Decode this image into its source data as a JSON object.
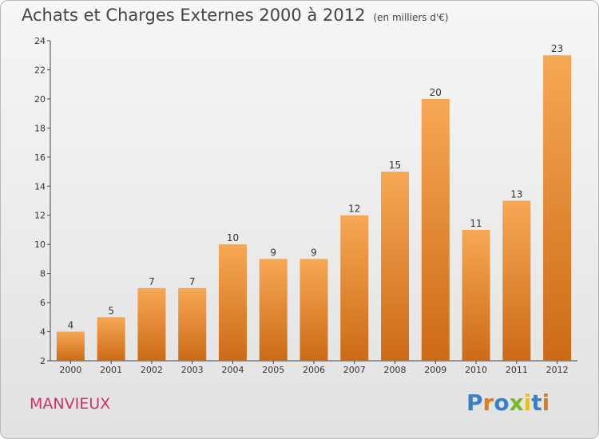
{
  "chart_data": {
    "type": "bar",
    "title": "Achats et Charges Externes 2000 à 2012",
    "subtitle": "(en milliers d'€)",
    "categories": [
      "2000",
      "2001",
      "2002",
      "2003",
      "2004",
      "2005",
      "2006",
      "2007",
      "2008",
      "2009",
      "2010",
      "2011",
      "2012"
    ],
    "values": [
      4,
      5,
      7,
      7,
      10,
      9,
      9,
      12,
      15,
      20,
      11,
      13,
      23
    ],
    "ylim": [
      2,
      24
    ],
    "yticks": [
      2,
      4,
      6,
      8,
      10,
      12,
      14,
      16,
      18,
      20,
      22,
      24
    ],
    "grid": false,
    "bar_color_top": "#f7a855",
    "bar_color_bottom": "#cc6a16"
  },
  "commune": "MANVIEUX",
  "logo": {
    "letters": [
      "P",
      "r",
      "o",
      "x",
      "i",
      "t",
      "i"
    ],
    "colors": [
      "#3b7fc4",
      "#e8791a",
      "#3b7fc4",
      "#78b928",
      "#e8c01a",
      "#3b7fc4",
      "#e8791a"
    ]
  }
}
